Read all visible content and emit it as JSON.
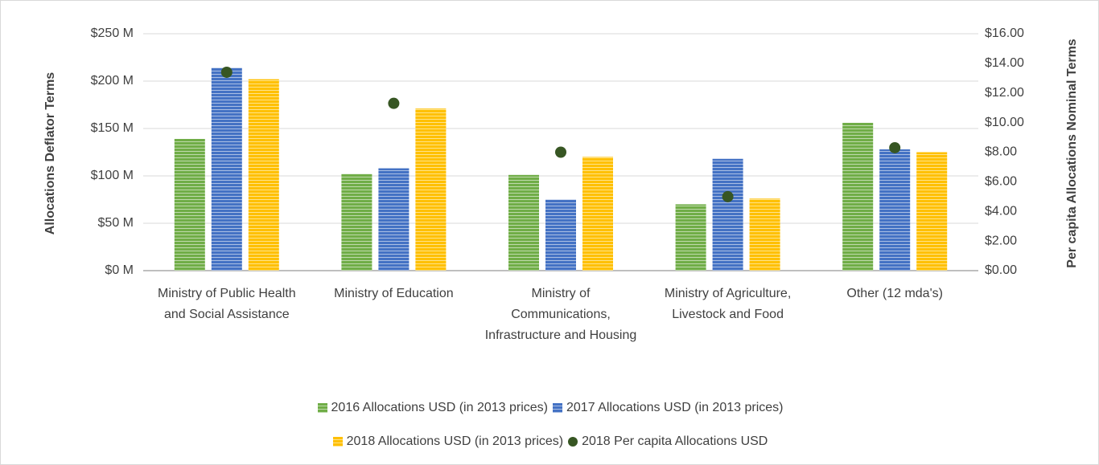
{
  "chart_data": {
    "type": "bar",
    "categories": [
      "Ministry of Public Health and Social Assistance",
      "Ministry of Education",
      "Ministry of Communications, Infrastructure and Housing",
      "Ministry of Agriculture, Livestock and Food",
      "Other (12 mda's)"
    ],
    "ylabel": "Allocations Deflator Terms",
    "y2label": "Per capita Allocations Nominal Terms",
    "ylim": [
      0,
      250
    ],
    "yticks": [
      {
        "value": 0,
        "label": "$0 M"
      },
      {
        "value": 50,
        "label": "$50 M"
      },
      {
        "value": 100,
        "label": "$100 M"
      },
      {
        "value": 150,
        "label": "$150 M"
      },
      {
        "value": 200,
        "label": "$200 M"
      },
      {
        "value": 250,
        "label": "$250 M"
      }
    ],
    "y2lim": [
      0,
      16
    ],
    "y2ticks": [
      {
        "value": 0,
        "label": "$0.00"
      },
      {
        "value": 2,
        "label": "$2.00"
      },
      {
        "value": 4,
        "label": "$4.00"
      },
      {
        "value": 6,
        "label": "$6.00"
      },
      {
        "value": 8,
        "label": "$8.00"
      },
      {
        "value": 10,
        "label": "$10.00"
      },
      {
        "value": 12,
        "label": "$12.00"
      },
      {
        "value": 14,
        "label": "$14.00"
      },
      {
        "value": 16,
        "label": "$16.00"
      }
    ],
    "grid": true,
    "legend": "bottom",
    "series": [
      {
        "name": "2016 Allocations USD (in 2013 prices)",
        "color": "#70ad47",
        "values": [
          139,
          102,
          101,
          70,
          156
        ]
      },
      {
        "name": "2017 Allocations USD (in 2013 prices)",
        "color": "#4472c4",
        "values": [
          214,
          108,
          75,
          118,
          128
        ]
      },
      {
        "name": "2018 Allocations USD (in 2013 prices)",
        "color": "#ffc000",
        "values": [
          202,
          171,
          120,
          76,
          125
        ]
      },
      {
        "name": "2018 Per capita Allocations USD",
        "color": "#375623",
        "type": "scatter",
        "axis": "y2",
        "values": [
          13.4,
          11.3,
          8.0,
          5.0,
          8.3
        ]
      }
    ]
  }
}
